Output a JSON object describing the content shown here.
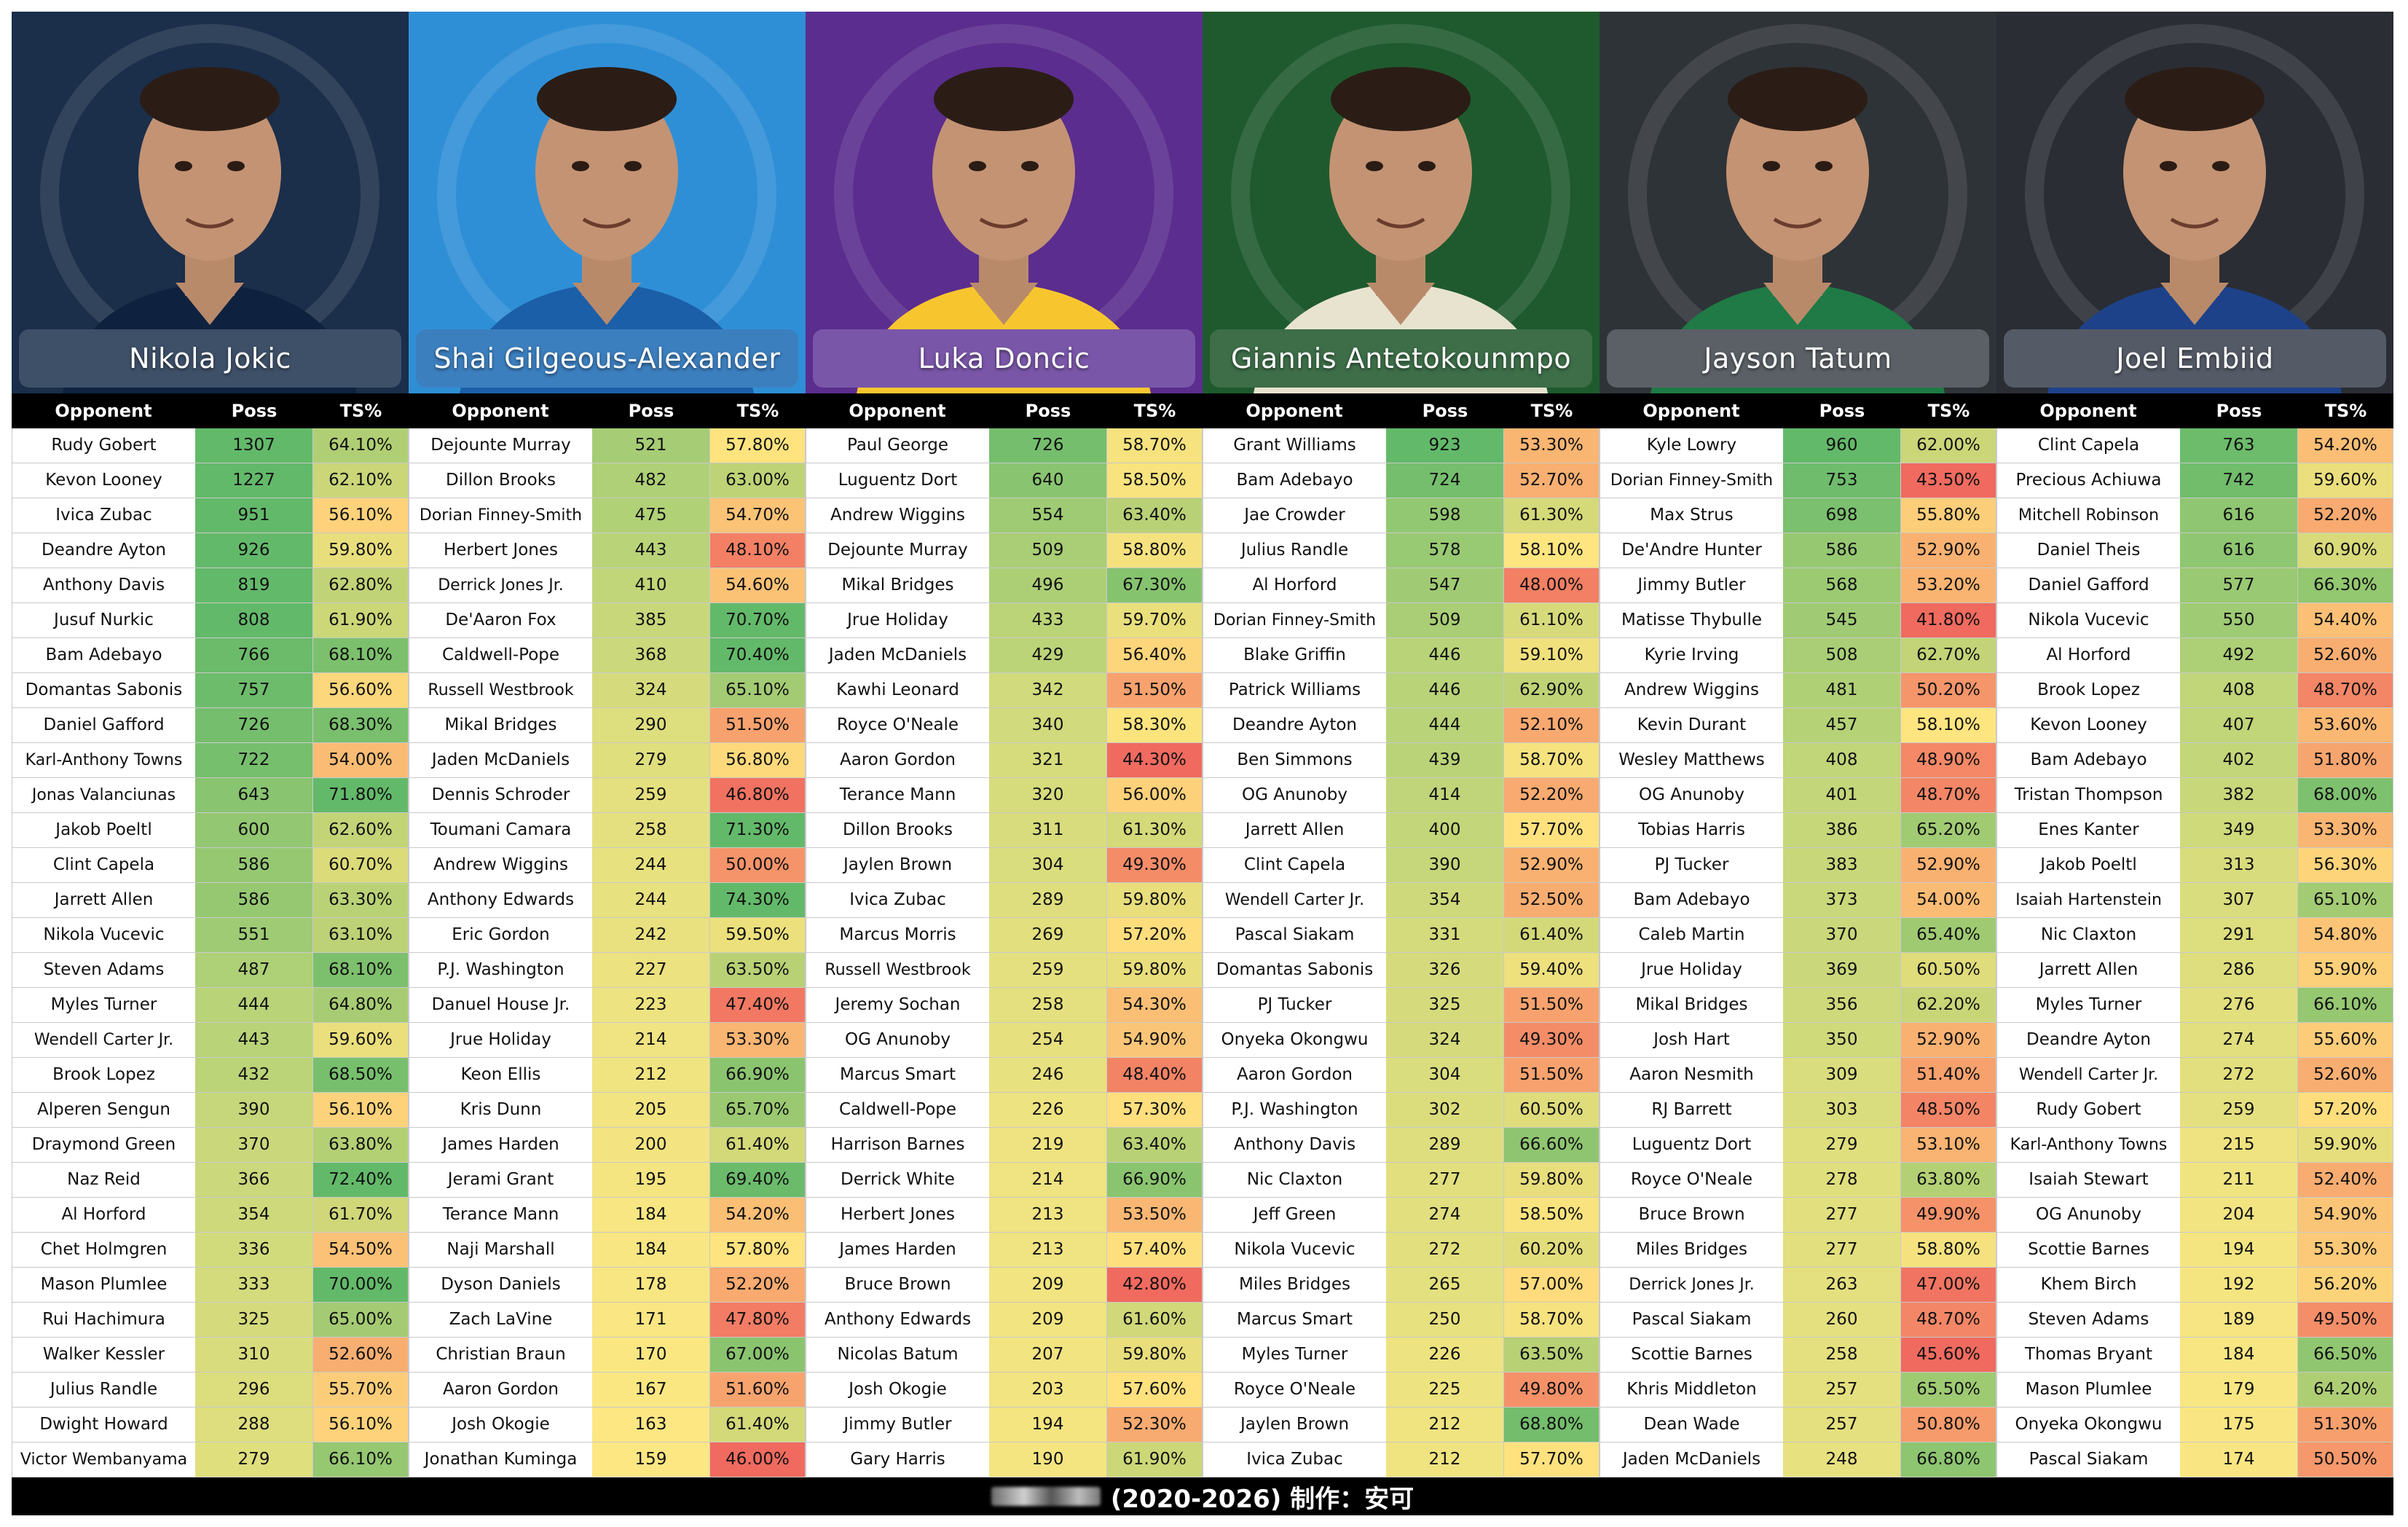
{
  "columns": {
    "opponent": "Opponent",
    "poss": "Poss",
    "ts": "TS%"
  },
  "footer": {
    "text": "(2020-2026)  制作：安可"
  },
  "colors": {
    "ts_low": "#f06a5f",
    "ts_mid": "#ffe57f",
    "ts_high": "#63b96a",
    "poss_low": "#ffe883",
    "poss_high": "#63b96a"
  },
  "players": [
    {
      "name": "Nikola Jokic",
      "bg": "#1b2e4a",
      "jersey": "#0e2240",
      "plate": "#3e5068",
      "rows": [
        [
          "Rudy Gobert",
          "1307",
          "64.10%"
        ],
        [
          "Kevon Looney",
          "1227",
          "62.10%"
        ],
        [
          "Ivica Zubac",
          "951",
          "56.10%"
        ],
        [
          "Deandre Ayton",
          "926",
          "59.80%"
        ],
        [
          "Anthony Davis",
          "819",
          "62.80%"
        ],
        [
          "Jusuf Nurkic",
          "808",
          "61.90%"
        ],
        [
          "Bam Adebayo",
          "766",
          "68.10%"
        ],
        [
          "Domantas Sabonis",
          "757",
          "56.60%"
        ],
        [
          "Daniel Gafford",
          "726",
          "68.30%"
        ],
        [
          "Karl-Anthony Towns",
          "722",
          "54.00%"
        ],
        [
          "Jonas Valanciunas",
          "643",
          "71.80%"
        ],
        [
          "Jakob Poeltl",
          "600",
          "62.60%"
        ],
        [
          "Clint Capela",
          "586",
          "60.70%"
        ],
        [
          "Jarrett Allen",
          "586",
          "63.30%"
        ],
        [
          "Nikola Vucevic",
          "551",
          "63.10%"
        ],
        [
          "Steven Adams",
          "487",
          "68.10%"
        ],
        [
          "Myles Turner",
          "444",
          "64.80%"
        ],
        [
          "Wendell Carter Jr.",
          "443",
          "59.60%"
        ],
        [
          "Brook Lopez",
          "432",
          "68.50%"
        ],
        [
          "Alperen Sengun",
          "390",
          "56.10%"
        ],
        [
          "Draymond Green",
          "370",
          "63.80%"
        ],
        [
          "Naz Reid",
          "366",
          "72.40%"
        ],
        [
          "Al Horford",
          "354",
          "61.70%"
        ],
        [
          "Chet Holmgren",
          "336",
          "54.50%"
        ],
        [
          "Mason Plumlee",
          "333",
          "70.00%"
        ],
        [
          "Rui Hachimura",
          "325",
          "65.00%"
        ],
        [
          "Walker Kessler",
          "310",
          "52.60%"
        ],
        [
          "Julius Randle",
          "296",
          "55.70%"
        ],
        [
          "Dwight Howard",
          "288",
          "56.10%"
        ],
        [
          "Victor Wembanyama",
          "279",
          "66.10%"
        ]
      ]
    },
    {
      "name": "Shai Gilgeous-Alexander",
      "bg": "#2f8fd6",
      "jersey": "#1b5fa8",
      "plate": "#3c7fbf",
      "rows": [
        [
          "Dejounte Murray",
          "521",
          "57.80%"
        ],
        [
          "Dillon Brooks",
          "482",
          "63.00%"
        ],
        [
          "Dorian Finney-Smith",
          "475",
          "54.70%"
        ],
        [
          "Herbert Jones",
          "443",
          "48.10%"
        ],
        [
          "Derrick Jones Jr.",
          "410",
          "54.60%"
        ],
        [
          "De'Aaron Fox",
          "385",
          "70.70%"
        ],
        [
          "Caldwell-Pope",
          "368",
          "70.40%"
        ],
        [
          "Russell Westbrook",
          "324",
          "65.10%"
        ],
        [
          "Mikal Bridges",
          "290",
          "51.50%"
        ],
        [
          "Jaden McDaniels",
          "279",
          "56.80%"
        ],
        [
          "Dennis Schroder",
          "259",
          "46.80%"
        ],
        [
          "Toumani Camara",
          "258",
          "71.30%"
        ],
        [
          "Andrew Wiggins",
          "244",
          "50.00%"
        ],
        [
          "Anthony Edwards",
          "244",
          "74.30%"
        ],
        [
          "Eric Gordon",
          "242",
          "59.50%"
        ],
        [
          "P.J. Washington",
          "227",
          "63.50%"
        ],
        [
          "Danuel House Jr.",
          "223",
          "47.40%"
        ],
        [
          "Jrue Holiday",
          "214",
          "53.30%"
        ],
        [
          "Keon Ellis",
          "212",
          "66.90%"
        ],
        [
          "Kris Dunn",
          "205",
          "65.70%"
        ],
        [
          "James Harden",
          "200",
          "61.40%"
        ],
        [
          "Jerami Grant",
          "195",
          "69.40%"
        ],
        [
          "Terance Mann",
          "184",
          "54.20%"
        ],
        [
          "Naji Marshall",
          "184",
          "57.80%"
        ],
        [
          "Dyson Daniels",
          "178",
          "52.20%"
        ],
        [
          "Zach LaVine",
          "171",
          "47.80%"
        ],
        [
          "Christian Braun",
          "170",
          "67.00%"
        ],
        [
          "Aaron Gordon",
          "167",
          "51.60%"
        ],
        [
          "Josh Okogie",
          "163",
          "61.40%"
        ],
        [
          "Jonathan Kuminga",
          "159",
          "46.00%"
        ]
      ]
    },
    {
      "name": "Luka Doncic",
      "bg": "#5b2d8e",
      "jersey": "#f7c62f",
      "plate": "#7a56a8",
      "rows": [
        [
          "Paul George",
          "726",
          "58.70%"
        ],
        [
          "Luguentz Dort",
          "640",
          "58.50%"
        ],
        [
          "Andrew Wiggins",
          "554",
          "63.40%"
        ],
        [
          "Dejounte Murray",
          "509",
          "58.80%"
        ],
        [
          "Mikal Bridges",
          "496",
          "67.30%"
        ],
        [
          "Jrue Holiday",
          "433",
          "59.70%"
        ],
        [
          "Jaden McDaniels",
          "429",
          "56.40%"
        ],
        [
          "Kawhi Leonard",
          "342",
          "51.50%"
        ],
        [
          "Royce O'Neale",
          "340",
          "58.30%"
        ],
        [
          "Aaron Gordon",
          "321",
          "44.30%"
        ],
        [
          "Terance Mann",
          "320",
          "56.00%"
        ],
        [
          "Dillon Brooks",
          "311",
          "61.30%"
        ],
        [
          "Jaylen Brown",
          "304",
          "49.30%"
        ],
        [
          "Ivica Zubac",
          "289",
          "59.80%"
        ],
        [
          "Marcus Morris",
          "269",
          "57.20%"
        ],
        [
          "Russell Westbrook",
          "259",
          "59.80%"
        ],
        [
          "Jeremy Sochan",
          "258",
          "54.30%"
        ],
        [
          "OG Anunoby",
          "254",
          "54.90%"
        ],
        [
          "Marcus Smart",
          "246",
          "48.40%"
        ],
        [
          "Caldwell-Pope",
          "226",
          "57.30%"
        ],
        [
          "Harrison Barnes",
          "219",
          "63.40%"
        ],
        [
          "Derrick White",
          "214",
          "66.90%"
        ],
        [
          "Herbert Jones",
          "213",
          "53.50%"
        ],
        [
          "James Harden",
          "213",
          "57.40%"
        ],
        [
          "Bruce Brown",
          "209",
          "42.80%"
        ],
        [
          "Anthony Edwards",
          "209",
          "61.60%"
        ],
        [
          "Nicolas Batum",
          "207",
          "59.80%"
        ],
        [
          "Josh Okogie",
          "203",
          "57.60%"
        ],
        [
          "Jimmy Butler",
          "194",
          "52.30%"
        ],
        [
          "Gary Harris",
          "190",
          "61.90%"
        ]
      ]
    },
    {
      "name": "Giannis Antetokounmpo",
      "bg": "#1f5a2e",
      "jersey": "#e8e3cf",
      "plate": "#3d6e48",
      "rows": [
        [
          "Grant Williams",
          "923",
          "53.30%"
        ],
        [
          "Bam Adebayo",
          "724",
          "52.70%"
        ],
        [
          "Jae Crowder",
          "598",
          "61.30%"
        ],
        [
          "Julius Randle",
          "578",
          "58.10%"
        ],
        [
          "Al Horford",
          "547",
          "48.00%"
        ],
        [
          "Dorian Finney-Smith",
          "509",
          "61.10%"
        ],
        [
          "Blake Griffin",
          "446",
          "59.10%"
        ],
        [
          "Patrick Williams",
          "446",
          "62.90%"
        ],
        [
          "Deandre Ayton",
          "444",
          "52.10%"
        ],
        [
          "Ben Simmons",
          "439",
          "58.70%"
        ],
        [
          "OG Anunoby",
          "414",
          "52.20%"
        ],
        [
          "Jarrett Allen",
          "400",
          "57.70%"
        ],
        [
          "Clint Capela",
          "390",
          "52.90%"
        ],
        [
          "Wendell Carter Jr.",
          "354",
          "52.50%"
        ],
        [
          "Pascal Siakam",
          "331",
          "61.40%"
        ],
        [
          "Domantas Sabonis",
          "326",
          "59.40%"
        ],
        [
          "PJ Tucker",
          "325",
          "51.50%"
        ],
        [
          "Onyeka Okongwu",
          "324",
          "49.30%"
        ],
        [
          "Aaron Gordon",
          "304",
          "51.50%"
        ],
        [
          "P.J. Washington",
          "302",
          "60.50%"
        ],
        [
          "Anthony Davis",
          "289",
          "66.60%"
        ],
        [
          "Nic Claxton",
          "277",
          "59.80%"
        ],
        [
          "Jeff Green",
          "274",
          "58.50%"
        ],
        [
          "Nikola Vucevic",
          "272",
          "60.20%"
        ],
        [
          "Miles Bridges",
          "265",
          "57.00%"
        ],
        [
          "Marcus Smart",
          "250",
          "58.70%"
        ],
        [
          "Myles Turner",
          "226",
          "63.50%"
        ],
        [
          "Royce O'Neale",
          "225",
          "49.80%"
        ],
        [
          "Jaylen Brown",
          "212",
          "68.80%"
        ],
        [
          "Ivica Zubac",
          "212",
          "57.70%"
        ]
      ]
    },
    {
      "name": "Jayson Tatum",
      "bg": "#2e3338",
      "jersey": "#1f7a45",
      "plate": "#5a6066",
      "rows": [
        [
          "Kyle Lowry",
          "960",
          "62.00%"
        ],
        [
          "Dorian Finney-Smith",
          "753",
          "43.50%"
        ],
        [
          "Max Strus",
          "698",
          "55.80%"
        ],
        [
          "De'Andre Hunter",
          "586",
          "52.90%"
        ],
        [
          "Jimmy Butler",
          "568",
          "53.20%"
        ],
        [
          "Matisse Thybulle",
          "545",
          "41.80%"
        ],
        [
          "Kyrie Irving",
          "508",
          "62.70%"
        ],
        [
          "Andrew Wiggins",
          "481",
          "50.20%"
        ],
        [
          "Kevin Durant",
          "457",
          "58.10%"
        ],
        [
          "Wesley Matthews",
          "408",
          "48.90%"
        ],
        [
          "OG Anunoby",
          "401",
          "48.70%"
        ],
        [
          "Tobias Harris",
          "386",
          "65.20%"
        ],
        [
          "PJ Tucker",
          "383",
          "52.90%"
        ],
        [
          "Bam Adebayo",
          "373",
          "54.00%"
        ],
        [
          "Caleb Martin",
          "370",
          "65.40%"
        ],
        [
          "Jrue Holiday",
          "369",
          "60.50%"
        ],
        [
          "Mikal Bridges",
          "356",
          "62.20%"
        ],
        [
          "Josh Hart",
          "350",
          "52.90%"
        ],
        [
          "Aaron Nesmith",
          "309",
          "51.40%"
        ],
        [
          "RJ Barrett",
          "303",
          "48.50%"
        ],
        [
          "Luguentz Dort",
          "279",
          "53.10%"
        ],
        [
          "Royce O'Neale",
          "278",
          "63.80%"
        ],
        [
          "Bruce Brown",
          "277",
          "49.90%"
        ],
        [
          "Miles Bridges",
          "277",
          "58.80%"
        ],
        [
          "Derrick Jones Jr.",
          "263",
          "47.00%"
        ],
        [
          "Pascal Siakam",
          "260",
          "48.70%"
        ],
        [
          "Scottie Barnes",
          "258",
          "45.60%"
        ],
        [
          "Khris Middleton",
          "257",
          "65.50%"
        ],
        [
          "Dean Wade",
          "257",
          "50.80%"
        ],
        [
          "Jaden McDaniels",
          "248",
          "66.80%"
        ]
      ]
    },
    {
      "name": "Joel Embiid",
      "bg": "#2a2d34",
      "jersey": "#1d428a",
      "plate": "#545a66",
      "rows": [
        [
          "Clint Capela",
          "763",
          "54.20%"
        ],
        [
          "Precious Achiuwa",
          "742",
          "59.60%"
        ],
        [
          "Mitchell Robinson",
          "616",
          "52.20%"
        ],
        [
          "Daniel Theis",
          "616",
          "60.90%"
        ],
        [
          "Daniel Gafford",
          "577",
          "66.30%"
        ],
        [
          "Nikola Vucevic",
          "550",
          "54.40%"
        ],
        [
          "Al Horford",
          "492",
          "52.60%"
        ],
        [
          "Brook Lopez",
          "408",
          "48.70%"
        ],
        [
          "Kevon Looney",
          "407",
          "53.60%"
        ],
        [
          "Bam Adebayo",
          "402",
          "51.80%"
        ],
        [
          "Tristan Thompson",
          "382",
          "68.00%"
        ],
        [
          "Enes Kanter",
          "349",
          "53.30%"
        ],
        [
          "Jakob Poeltl",
          "313",
          "56.30%"
        ],
        [
          "Isaiah Hartenstein",
          "307",
          "65.10%"
        ],
        [
          "Nic Claxton",
          "291",
          "54.80%"
        ],
        [
          "Jarrett Allen",
          "286",
          "55.90%"
        ],
        [
          "Myles Turner",
          "276",
          "66.10%"
        ],
        [
          "Deandre Ayton",
          "274",
          "55.60%"
        ],
        [
          "Wendell Carter Jr.",
          "272",
          "52.60%"
        ],
        [
          "Rudy Gobert",
          "259",
          "57.20%"
        ],
        [
          "Karl-Anthony Towns",
          "215",
          "59.90%"
        ],
        [
          "Isaiah Stewart",
          "211",
          "52.40%"
        ],
        [
          "OG Anunoby",
          "204",
          "54.90%"
        ],
        [
          "Scottie Barnes",
          "194",
          "55.30%"
        ],
        [
          "Khem Birch",
          "192",
          "56.20%"
        ],
        [
          "Steven Adams",
          "189",
          "49.50%"
        ],
        [
          "Thomas Bryant",
          "184",
          "66.50%"
        ],
        [
          "Mason Plumlee",
          "179",
          "64.20%"
        ],
        [
          "Onyeka Okongwu",
          "175",
          "51.30%"
        ],
        [
          "Pascal Siakam",
          "174",
          "50.50%"
        ]
      ]
    }
  ]
}
